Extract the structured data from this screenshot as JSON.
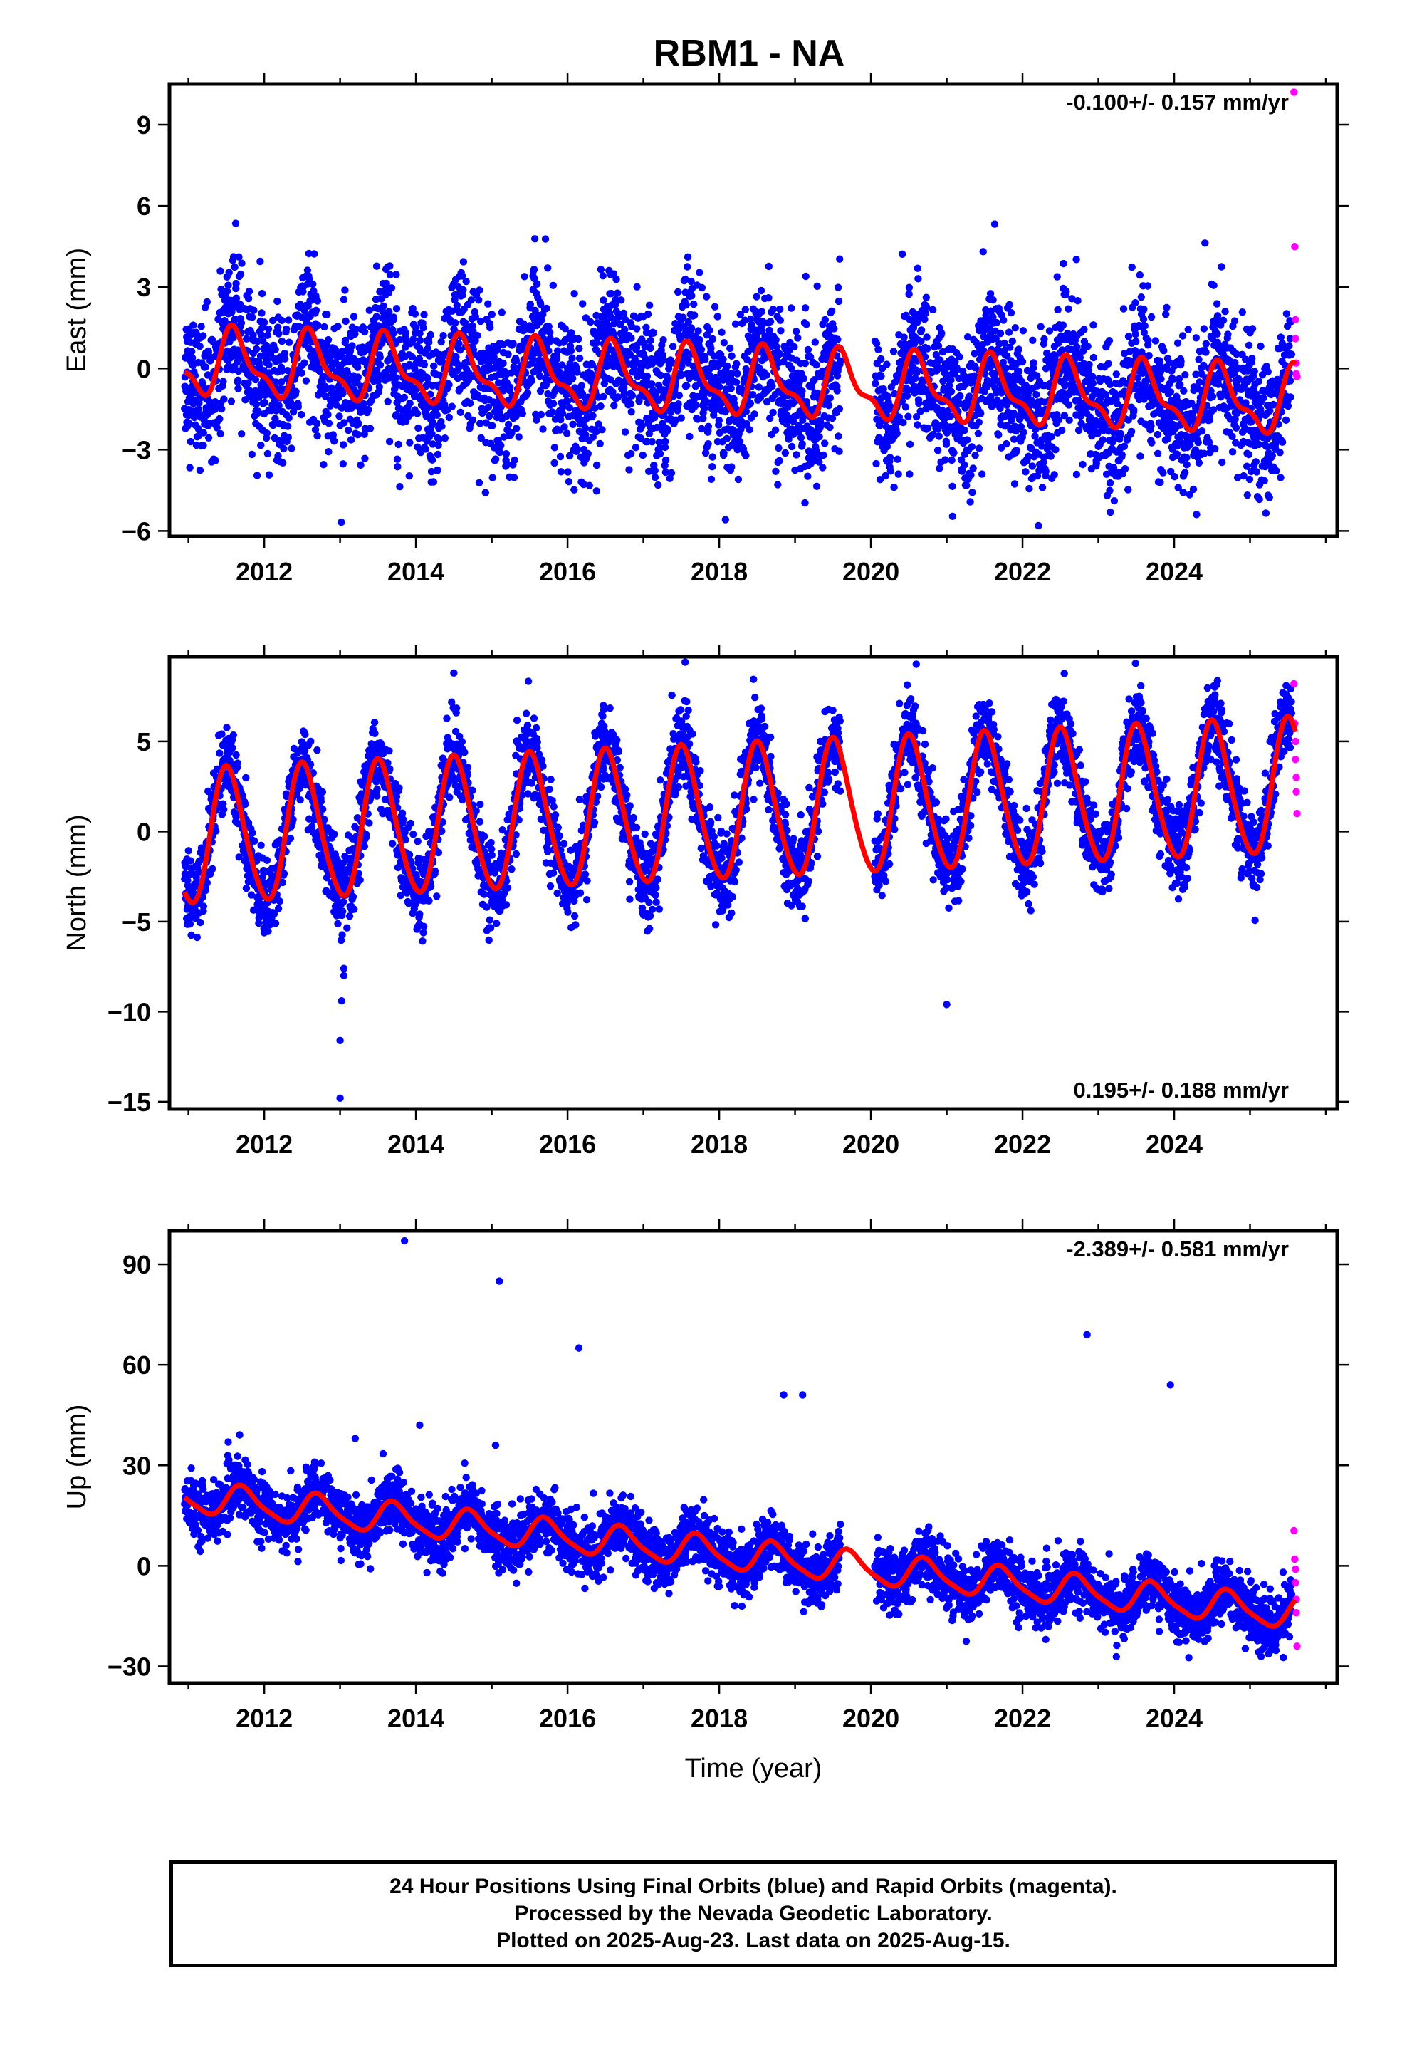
{
  "title": "RBM1 - NA",
  "colors": {
    "final": "#0000ff",
    "rapid": "#ff00ff",
    "model": "#ff0000",
    "frame": "#000000"
  },
  "footer": {
    "line1": "24 Hour Positions Using Final Orbits (blue) and Rapid Orbits (magenta).",
    "line2": "Processed by the Nevada Geodetic Laboratory.",
    "line3": "Plotted on 2025-Aug-23. Last data on 2025-Aug-15."
  },
  "chart_data": [
    {
      "type": "scatter",
      "ylabel": "East (mm)",
      "xlabel": "",
      "xlim": [
        2010.75,
        2026.15
      ],
      "ylim": [
        -6.2,
        10.5
      ],
      "xticks": [
        2012,
        2014,
        2016,
        2018,
        2020,
        2022,
        2024
      ],
      "yticks": [
        -6,
        -3,
        0,
        3,
        6,
        9
      ],
      "grid": false,
      "rate_label": "-0.100+/- 0.157 mm/yr",
      "rate_position": "top-right",
      "series": [
        {
          "kind": "final",
          "x_range": [
            2010.95,
            2025.55
          ],
          "trend": -0.1,
          "offset": 0.2,
          "annual_amp": 1.1,
          "annual_phase_peak": 0.62,
          "semi_amp": 0.45,
          "noise_sd": 1.3,
          "gap": [
            2019.6,
            2020.05
          ]
        },
        {
          "kind": "rapid",
          "x": [
            2025.58,
            2025.59,
            2025.6,
            2025.6,
            2025.61,
            2025.61,
            2025.62
          ],
          "y": [
            10.2,
            4.5,
            1.8,
            1.1,
            0.2,
            -0.2,
            -0.3
          ]
        },
        {
          "kind": "model",
          "x_range": [
            2010.95,
            2025.6
          ],
          "trend": -0.1,
          "offset": 0.2,
          "annual_amp": 1.1,
          "annual_phase_peak": 0.62,
          "semi_amp": 0.45
        }
      ]
    },
    {
      "type": "scatter",
      "ylabel": "North (mm)",
      "xlabel": "",
      "xlim": [
        2010.75,
        2026.15
      ],
      "ylim": [
        -15.4,
        9.7
      ],
      "xticks": [
        2012,
        2014,
        2016,
        2018,
        2020,
        2022,
        2024
      ],
      "yticks": [
        -15,
        -10,
        -5,
        0,
        5
      ],
      "grid": false,
      "rate_label": "0.195+/- 0.188 mm/yr",
      "rate_position": "bottom-right",
      "series": [
        {
          "kind": "final",
          "x_range": [
            2010.95,
            2025.55
          ],
          "trend": 0.195,
          "offset": -0.4,
          "annual_amp": 3.7,
          "annual_phase_peak": 0.52,
          "semi_amp": 0.4,
          "noise_sd": 1.1,
          "gap": [
            2019.6,
            2020.05
          ]
        },
        {
          "kind": "final",
          "x": [
            2013.0,
            2013.0,
            2013.02,
            2013.05,
            2013.05,
            2021.0,
            2017.55,
            2014.5
          ],
          "y": [
            -14.8,
            -11.6,
            -9.4,
            -8.0,
            -7.6,
            -9.6,
            9.4,
            8.8
          ]
        },
        {
          "kind": "rapid",
          "x": [
            2025.58,
            2025.59,
            2025.6,
            2025.6,
            2025.61,
            2025.61,
            2025.62
          ],
          "y": [
            8.2,
            6.0,
            5.0,
            4.0,
            3.0,
            2.2,
            1.0
          ]
        },
        {
          "kind": "model",
          "x_range": [
            2010.95,
            2025.6
          ],
          "trend": 0.195,
          "offset": -0.4,
          "annual_amp": 3.7,
          "annual_phase_peak": 0.52,
          "semi_amp": 0.4
        }
      ]
    },
    {
      "type": "scatter",
      "ylabel": "Up (mm)",
      "xlabel": "Time (year)",
      "xlim": [
        2010.75,
        2026.15
      ],
      "ylim": [
        -35,
        100
      ],
      "xticks": [
        2012,
        2014,
        2016,
        2018,
        2020,
        2022,
        2024
      ],
      "yticks": [
        -30,
        0,
        30,
        60,
        90
      ],
      "grid": false,
      "rate_label": "-2.389+/- 0.581 mm/yr",
      "rate_position": "top-right",
      "series": [
        {
          "kind": "final",
          "x_range": [
            2010.95,
            2025.55
          ],
          "trend": -2.389,
          "offset": 20.5,
          "annual_amp": 4.5,
          "annual_phase_peak": 0.72,
          "semi_amp": 1.0,
          "noise_sd": 4.2,
          "gap": [
            2019.6,
            2020.05
          ]
        },
        {
          "kind": "final",
          "x": [
            2013.85,
            2015.1,
            2016.15,
            2018.85,
            2019.1,
            2022.85,
            2023.95,
            2014.05,
            2013.2,
            2015.05
          ],
          "y": [
            97,
            85,
            65,
            51,
            51,
            69,
            54,
            42,
            38,
            36
          ]
        },
        {
          "kind": "rapid",
          "x": [
            2025.58,
            2025.59,
            2025.6,
            2025.6,
            2025.61,
            2025.61,
            2025.62
          ],
          "y": [
            10.5,
            2.0,
            -1.0,
            -5.0,
            -10.0,
            -14.0,
            -24.0
          ]
        },
        {
          "kind": "model",
          "x_range": [
            2010.95,
            2025.6
          ],
          "trend": -2.389,
          "offset": 20.5,
          "annual_amp": 4.5,
          "annual_phase_peak": 0.72,
          "semi_amp": 1.0
        }
      ]
    }
  ]
}
